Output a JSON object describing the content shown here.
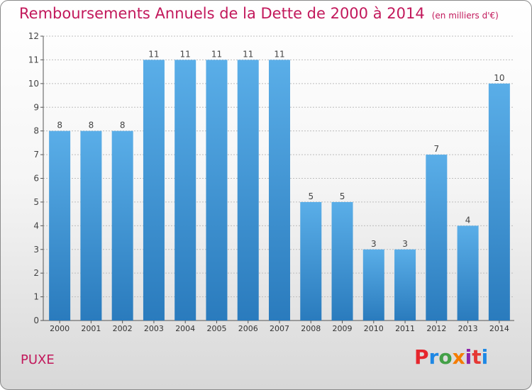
{
  "header": {
    "title": "Remboursements Annuels de la Dette de 2000 à 2014",
    "unit": "(en milliers d'€)"
  },
  "footer": {
    "commune": "PUXE",
    "logo": "Proxiti",
    "logo_colors": [
      "#e6262d",
      "#1e88e5",
      "#43a047",
      "#f57c00",
      "#8e24aa",
      "#e53935",
      "#1e88e5"
    ]
  },
  "colors": {
    "bar_top": "#5aaee8",
    "bar_bottom": "#2a7bbd",
    "title": "#c2185b",
    "grid": "#bdbdbd"
  },
  "chart_data": {
    "type": "bar",
    "title": "Remboursements Annuels de la Dette de 2000 à 2014",
    "ylabel": "",
    "xlabel": "",
    "categories": [
      "2000",
      "2001",
      "2002",
      "2003",
      "2004",
      "2005",
      "2006",
      "2007",
      "2008",
      "2009",
      "2010",
      "2011",
      "2012",
      "2013",
      "2014"
    ],
    "values": [
      8,
      8,
      8,
      11,
      11,
      11,
      11,
      11,
      5,
      5,
      3,
      3,
      7,
      4,
      10
    ],
    "ylim": [
      0,
      12
    ],
    "yticks": [
      "0",
      "1",
      "2",
      "3",
      "4",
      "5",
      "6",
      "7",
      "8",
      "9",
      "10",
      "11",
      "12"
    ],
    "grid": true
  }
}
